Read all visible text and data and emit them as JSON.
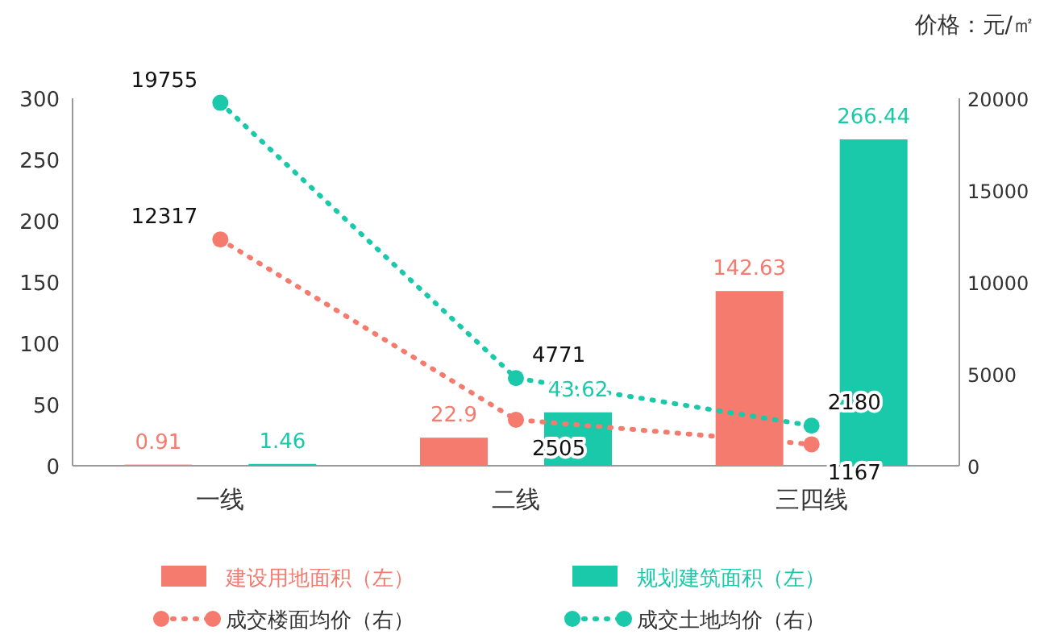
{
  "chart_data": {
    "type": "bar",
    "y2label": "价格：元/㎡",
    "categories": [
      "一线",
      "二线",
      "三四线"
    ],
    "series": [
      {
        "name": "建设用地面积（左）",
        "color": "#f47b6e",
        "values": [
          0.91,
          22.9,
          142.63
        ]
      },
      {
        "name": "规划建筑面积（左）",
        "color": "#19c9a9",
        "values": [
          1.46,
          43.62,
          266.44
        ]
      },
      {
        "name": "成交楼面均价（右）",
        "type": "line",
        "axis": "y2",
        "color": "#f47b6e",
        "marker": "circle",
        "line_style": "dotted",
        "values": [
          12317,
          2505,
          1167
        ]
      },
      {
        "name": "成交土地均价（右）",
        "type": "line",
        "axis": "y2",
        "color": "#19c9a9",
        "marker": "circle",
        "line_style": "dotted",
        "values": [
          19755,
          4771,
          2180
        ]
      }
    ],
    "ylim": [
      0,
      300
    ],
    "yticks": [
      0,
      50,
      100,
      150,
      200,
      250,
      300
    ],
    "y2lim": [
      0,
      20000
    ],
    "y2ticks": [
      0,
      5000,
      10000,
      15000,
      20000
    ],
    "data_labels": true,
    "legend": "bottom"
  }
}
